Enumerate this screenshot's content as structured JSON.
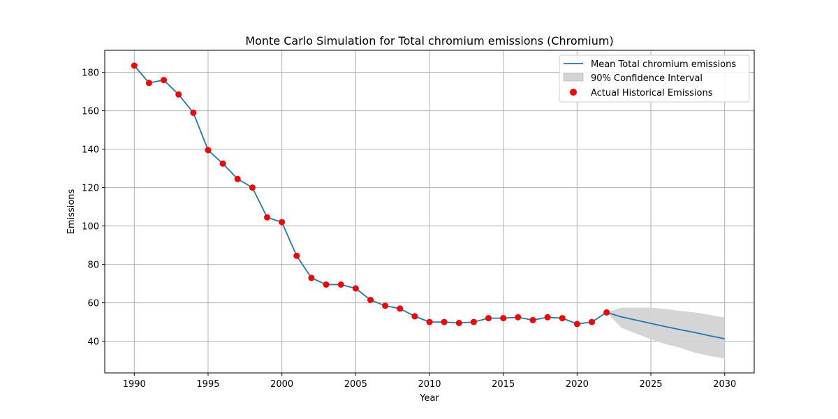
{
  "chart_data": {
    "type": "line",
    "title": "Monte Carlo Simulation for Total chromium emissions (Chromium)",
    "xlabel": "Year",
    "ylabel": "Emissions",
    "xlim": [
      1988,
      2032
    ],
    "ylim": [
      23.5,
      191.5
    ],
    "xticks": [
      1990,
      1995,
      2000,
      2005,
      2010,
      2015,
      2020,
      2025,
      2030
    ],
    "yticks": [
      40,
      60,
      80,
      100,
      120,
      140,
      160,
      180
    ],
    "grid": true,
    "legend_position": "top-right",
    "legend": [
      {
        "label": "Mean Total chromium emissions",
        "kind": "line",
        "color": "#1f77b4"
      },
      {
        "label": "90% Confidence Interval",
        "kind": "band",
        "color": "#d3d3d3"
      },
      {
        "label": "Actual Historical Emissions",
        "kind": "marker",
        "color": "#ff0000"
      }
    ],
    "series": [
      {
        "kind": "line",
        "color": "#1f77b4",
        "x": [
          1990,
          1991,
          1992,
          1993,
          1994,
          1995,
          1996,
          1997,
          1998,
          1999,
          2000,
          2001,
          2002,
          2003,
          2004,
          2005,
          2006,
          2007,
          2008,
          2009,
          2010,
          2011,
          2012,
          2013,
          2014,
          2015,
          2016,
          2017,
          2018,
          2019,
          2020,
          2021,
          2022,
          2023,
          2024,
          2025,
          2026,
          2027,
          2028,
          2029,
          2030
        ],
        "y": [
          183.5,
          174.5,
          176,
          168.5,
          159,
          139.5,
          132.5,
          124.5,
          120,
          104.5,
          102,
          84.5,
          73,
          69.5,
          69.5,
          67.5,
          61.5,
          58.5,
          57,
          53,
          50,
          50,
          49.5,
          50,
          52,
          52,
          52.5,
          51,
          52.5,
          52,
          49,
          50,
          55,
          52.7,
          51,
          49.3,
          47.6,
          46,
          44.5,
          42.8,
          41.3
        ]
      },
      {
        "kind": "band",
        "color": "#d3d3d3",
        "x": [
          2022,
          2023,
          2024,
          2025,
          2026,
          2027,
          2028,
          2029,
          2030
        ],
        "upper": [
          55,
          57.5,
          57.5,
          57.5,
          56.8,
          55.8,
          55,
          53.7,
          52.3
        ],
        "lower": [
          55,
          47,
          44,
          41,
          38.5,
          36.5,
          34,
          32.3,
          31
        ]
      },
      {
        "kind": "scatter",
        "color": "#ff0000",
        "x": [
          1990,
          1991,
          1992,
          1993,
          1994,
          1995,
          1996,
          1997,
          1998,
          1999,
          2000,
          2001,
          2002,
          2003,
          2004,
          2005,
          2006,
          2007,
          2008,
          2009,
          2010,
          2011,
          2012,
          2013,
          2014,
          2015,
          2016,
          2017,
          2018,
          2019,
          2020,
          2021,
          2022
        ],
        "y": [
          183.5,
          174.5,
          176,
          168.5,
          159,
          139.5,
          132.5,
          124.5,
          120,
          104.5,
          102,
          84.5,
          73,
          69.5,
          69.5,
          67.5,
          61.5,
          58.5,
          57,
          53,
          50,
          50,
          49.5,
          50,
          52,
          52,
          52.5,
          51,
          52.5,
          52,
          49,
          50,
          55
        ]
      }
    ]
  }
}
